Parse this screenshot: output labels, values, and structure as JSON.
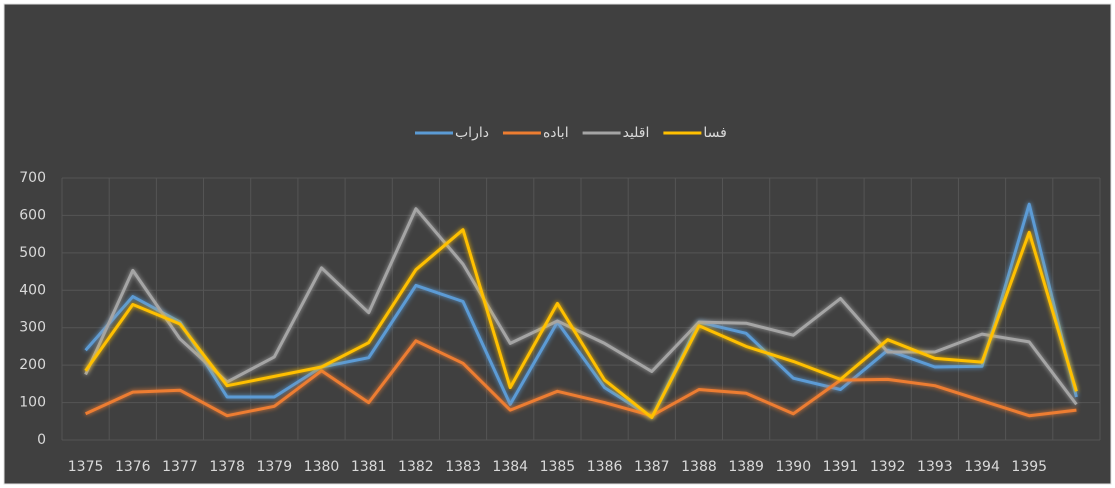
{
  "chart_data": {
    "type": "line",
    "categories": [
      "1375",
      "1376",
      "1377",
      "1378",
      "1379",
      "1380",
      "1381",
      "1382",
      "1383",
      "1384",
      "1385",
      "1386",
      "1387",
      "1388",
      "1389",
      "1390",
      "1391",
      "1392",
      "1393",
      "1394",
      "1395",
      null
    ],
    "series": [
      {
        "name": "داراب",
        "color": "#5b9bd5",
        "values": [
          240,
          383,
          315,
          115,
          115,
          195,
          220,
          413,
          370,
          95,
          315,
          140,
          60,
          315,
          285,
          165,
          135,
          240,
          195,
          197,
          630,
          115
        ]
      },
      {
        "name": "اباده",
        "color": "#ed7d31",
        "values": [
          70,
          128,
          133,
          65,
          90,
          185,
          100,
          265,
          205,
          80,
          130,
          100,
          65,
          135,
          125,
          70,
          160,
          162,
          145,
          105,
          65,
          80
        ]
      },
      {
        "name": "اقلید",
        "color": "#a5a5a5",
        "values": [
          175,
          453,
          270,
          155,
          222,
          460,
          340,
          618,
          470,
          258,
          318,
          258,
          183,
          315,
          312,
          280,
          378,
          235,
          235,
          283,
          262,
          95
        ]
      },
      {
        "name": "فسا",
        "color": "#ffc000",
        "values": [
          185,
          362,
          310,
          145,
          170,
          195,
          260,
          455,
          562,
          140,
          365,
          160,
          60,
          305,
          250,
          210,
          162,
          268,
          218,
          208,
          555,
          130
        ]
      }
    ],
    "ylim": [
      0,
      700
    ],
    "yticks": [
      0,
      100,
      200,
      300,
      400,
      500,
      600,
      700
    ],
    "grid": true
  }
}
